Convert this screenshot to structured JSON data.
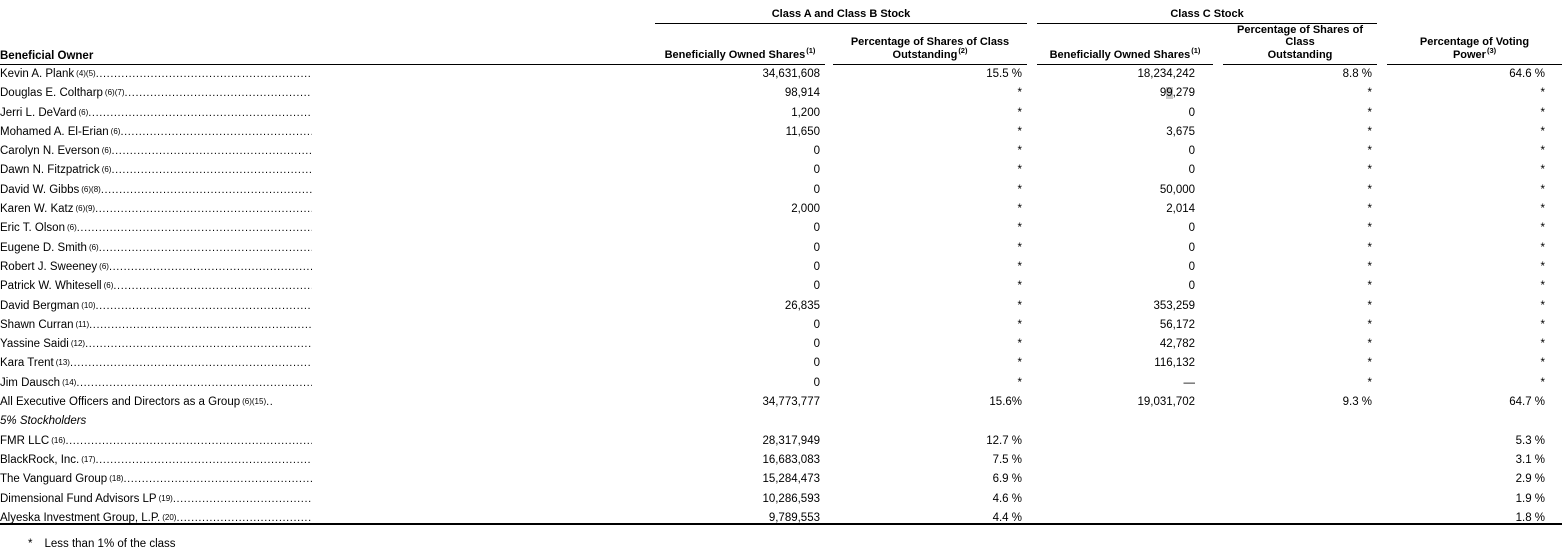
{
  "table": {
    "group_headers": {
      "class_ab": "Class A and Class B Stock",
      "class_c": "Class C Stock"
    },
    "columns": {
      "owner": "Beneficial Owner",
      "a_shares": {
        "text": "Beneficially Owned Shares",
        "sup": "(1)"
      },
      "a_pct": {
        "line1": "Percentage of Shares of Class",
        "line2": "Outstanding",
        "sup": "(2)"
      },
      "c_shares": {
        "text": "Beneficially Owned Shares",
        "sup": "(1)"
      },
      "c_pct": {
        "line1": "Percentage of Shares of Class",
        "line2": "Outstanding",
        "sup": ""
      },
      "voting": {
        "line1": "Percentage of Voting",
        "line2": "Power",
        "sup": "(3)"
      }
    },
    "rows": [
      {
        "owner": "Kevin A. Plank",
        "sup": "(4)(5)",
        "leader": true,
        "italic": false,
        "a_shares": "34,631,608",
        "a_pct": "15.5 %",
        "c_shares": "18,234,242",
        "c_pct": "8.8 %",
        "voting": "64.6 %"
      },
      {
        "owner": "Douglas E. Coltharp",
        "sup": "(6)(7)",
        "leader": true,
        "italic": false,
        "a_shares": "98,914",
        "a_pct": "*",
        "c_shares": "99,279",
        "c_shares_parts": [
          "9",
          "9",
          ",279"
        ],
        "c_pct": "*",
        "voting": "*"
      },
      {
        "owner": "Jerri L. DeVard",
        "sup": "(6)",
        "leader": true,
        "italic": false,
        "a_shares": "1,200",
        "a_pct": "*",
        "c_shares": "0",
        "c_pct": "*",
        "voting": "*"
      },
      {
        "owner": "Mohamed A. El-Erian",
        "sup": "(6)",
        "leader": true,
        "italic": false,
        "a_shares": "11,650",
        "a_pct": "*",
        "c_shares": "3,675",
        "c_pct": "*",
        "voting": "*"
      },
      {
        "owner": "Carolyn N. Everson",
        "sup": "(6)",
        "leader": true,
        "italic": false,
        "a_shares": "0",
        "a_pct": "*",
        "c_shares": "0",
        "c_pct": "*",
        "voting": "*"
      },
      {
        "owner": "Dawn N. Fitzpatrick",
        "sup": "(6)",
        "leader": true,
        "italic": false,
        "a_shares": "0",
        "a_pct": "*",
        "c_shares": "0",
        "c_pct": "*",
        "voting": "*"
      },
      {
        "owner": "David W. Gibbs",
        "sup": "(6)(8)",
        "leader": true,
        "italic": false,
        "a_shares": "0",
        "a_pct": "*",
        "c_shares": "50,000",
        "c_pct": "*",
        "voting": "*"
      },
      {
        "owner": "Karen W. Katz",
        "sup": "(6)(9)",
        "leader": true,
        "italic": false,
        "a_shares": "2,000",
        "a_pct": "*",
        "c_shares": "2,014",
        "c_pct": "*",
        "voting": "*"
      },
      {
        "owner": "Eric T. Olson",
        "sup": "(6)",
        "leader": true,
        "italic": false,
        "a_shares": "0",
        "a_pct": "*",
        "c_shares": "0",
        "c_pct": "*",
        "voting": "*"
      },
      {
        "owner": "Eugene D. Smith",
        "sup": "(6)",
        "leader": true,
        "italic": false,
        "a_shares": "0",
        "a_pct": "*",
        "c_shares": "0",
        "c_pct": "*",
        "voting": "*"
      },
      {
        "owner": "Robert J. Sweeney",
        "sup": "(6)",
        "leader": true,
        "italic": false,
        "a_shares": "0",
        "a_pct": "*",
        "c_shares": "0",
        "c_pct": "*",
        "voting": "*"
      },
      {
        "owner": "Patrick W. Whitesell",
        "sup": "(6)",
        "leader": true,
        "italic": false,
        "a_shares": "0",
        "a_pct": "*",
        "c_shares": "0",
        "c_pct": "*",
        "voting": "*"
      },
      {
        "owner": "David Bergman",
        "sup": "(10)",
        "leader": true,
        "italic": false,
        "a_shares": "26,835",
        "a_pct": "*",
        "c_shares": "353,259",
        "c_pct": "*",
        "voting": "*"
      },
      {
        "owner": "Shawn Curran",
        "sup": "(11)",
        "leader": true,
        "italic": false,
        "a_shares": "0",
        "a_pct": "*",
        "c_shares": "56,172",
        "c_pct": "*",
        "voting": "*"
      },
      {
        "owner": "Yassine Saidi",
        "sup": "(12)",
        "leader": true,
        "italic": false,
        "a_shares": "0",
        "a_pct": "*",
        "c_shares": "42,782",
        "c_pct": "*",
        "voting": "*"
      },
      {
        "owner": "Kara Trent",
        "sup": "(13)",
        "leader": true,
        "italic": false,
        "a_shares": "0",
        "a_pct": "*",
        "c_shares": "116,132",
        "c_pct": "*",
        "voting": "*"
      },
      {
        "owner": "Jim Dausch",
        "sup": "(14)",
        "leader": true,
        "italic": false,
        "a_shares": "0",
        "a_pct": "*",
        "c_shares": "—",
        "c_pct": "*",
        "voting": "*"
      },
      {
        "owner": "All Executive Officers and Directors as a Group",
        "sup": "(6)(15)",
        "suffix": "..",
        "leader": false,
        "italic": false,
        "a_shares": "34,773,777",
        "a_pct": "15.6%",
        "c_shares": "19,031,702",
        "c_pct": "9.3 %",
        "voting": "64.7 %"
      },
      {
        "owner": "5% Stockholders",
        "sup": "",
        "leader": false,
        "italic": true,
        "a_shares": "",
        "a_pct": "",
        "c_shares": "",
        "c_pct": "",
        "voting": ""
      },
      {
        "owner": "FMR LLC",
        "sup": "(16)",
        "leader": true,
        "italic": false,
        "a_shares": "28,317,949",
        "a_pct": "12.7 %",
        "c_shares": "",
        "c_pct": "",
        "voting": "5.3 %"
      },
      {
        "owner": "BlackRock, Inc.",
        "sup": "(17)",
        "leader": true,
        "italic": false,
        "a_shares": "16,683,083",
        "a_pct": "7.5 %",
        "c_shares": "",
        "c_pct": "",
        "voting": "3.1 %"
      },
      {
        "owner": "The Vanguard Group",
        "sup": "(18)",
        "leader": true,
        "italic": false,
        "a_shares": "15,284,473",
        "a_pct": "6.9 %",
        "c_shares": "",
        "c_pct": "",
        "voting": "2.9 %"
      },
      {
        "owner": "Dimensional Fund Advisors LP",
        "sup": "(19)",
        "leader": true,
        "italic": false,
        "a_shares": "10,286,593",
        "a_pct": "4.6 %",
        "c_shares": "",
        "c_pct": "",
        "voting": "1.9 %"
      },
      {
        "owner": "Alyeska Investment Group, L.P.",
        "sup": "(20)",
        "leader": true,
        "italic": false,
        "a_shares": "9,789,553",
        "a_pct": "4.4 %",
        "c_shares": "",
        "c_pct": "",
        "voting": "1.8 %"
      }
    ]
  },
  "footnote": {
    "marker": "*",
    "text": "Less than 1% of the class"
  },
  "colors": {
    "selection_highlight": "#c6c6c6",
    "text": "#000000",
    "background": "#ffffff"
  }
}
